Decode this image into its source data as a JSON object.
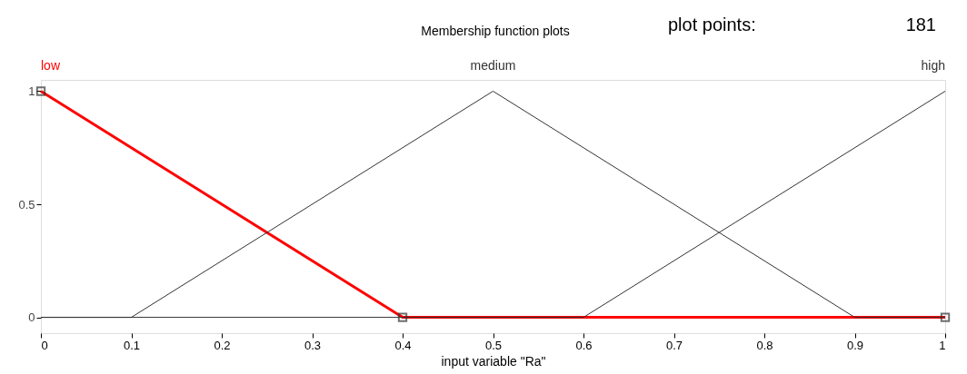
{
  "chart_data": {
    "type": "line",
    "title": "Membership function plots",
    "xlabel": "input variable \"Ra\"",
    "annotations": [
      "plot points:",
      "181"
    ],
    "xlim": [
      0,
      1
    ],
    "xticks": [
      0,
      0.1,
      0.2,
      0.3,
      0.4,
      0.5,
      0.6,
      0.7,
      0.8,
      0.9,
      1
    ],
    "ylim": [
      -0.07,
      1.05
    ],
    "yticks": [
      0,
      0.5,
      1
    ],
    "grid": false,
    "series": [
      {
        "name": "low",
        "color": "#ff0000",
        "marker": "square",
        "x": [
          0,
          0.4,
          1
        ],
        "values": [
          1,
          0,
          0
        ]
      },
      {
        "name": "medium",
        "color": "#333333",
        "x": [
          0,
          0.1,
          0.5,
          0.9,
          1
        ],
        "values": [
          0,
          0,
          1,
          0,
          0
        ]
      },
      {
        "name": "high",
        "color": "#333333",
        "x": [
          0,
          0.6,
          1
        ],
        "values": [
          0,
          0,
          1
        ]
      }
    ]
  }
}
